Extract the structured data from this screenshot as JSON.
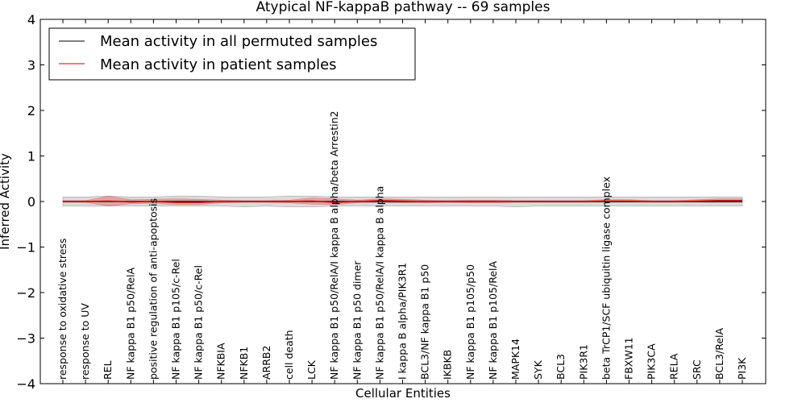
{
  "chart_data": {
    "type": "line",
    "title": "Atypical NF-kappaB pathway -- 69 samples",
    "xlabel": "Cellular Entities",
    "ylabel": "Inferred Activity",
    "ylim": [
      -4,
      4
    ],
    "yticks": [
      -4,
      -3,
      -2,
      -1,
      0,
      1,
      2,
      3,
      4
    ],
    "ytick_labels": [
      "−4",
      "−3",
      "−2",
      "−1",
      "0",
      "1",
      "2",
      "3",
      "4"
    ],
    "legend_position": "top-left",
    "categories": [
      "response to oxidative stress",
      "response to UV",
      "REL",
      "NF kappa B1 p50/RelA",
      "positive regulation of anti-apoptosis",
      "NF kappa B1 p105/c-Rel",
      "NF kappa B1 p50/c-Rel",
      "NFKBIA",
      "NFKB1",
      "ARRB2",
      "cell death",
      "LCK",
      "NF kappa B1 p50/RelA/I kappa B alpha/beta Arrestin2",
      "NF kappa B1 p50 dimer",
      "NF kappa B1 p50/RelA/I kappa B alpha",
      "I kappa B alpha/PIK3R1",
      "BCL3/NF kappa B1 p50",
      "IKBKB",
      "NF kappa B1 p105/p50",
      "NF kappa B1 p105/RelA",
      "MAPK14",
      "SYK",
      "BCL3",
      "PIK3R1",
      "beta TrCP1/SCF ubiquitin ligase complex",
      "FBXW11",
      "PIK3CA",
      "RELA",
      "SRC",
      "BCL3/RelA",
      "PI3K"
    ],
    "series": [
      {
        "name": "Mean activity in all permuted samples",
        "color": "#000000",
        "values": [
          0.0,
          0.0,
          0.0,
          0.0,
          0.0,
          0.0,
          0.0,
          0.0,
          0.0,
          0.0,
          0.0,
          0.0,
          0.0,
          0.0,
          0.0,
          0.0,
          0.0,
          0.0,
          0.0,
          0.0,
          0.0,
          0.0,
          0.0,
          0.0,
          0.0,
          0.0,
          0.0,
          0.0,
          0.0,
          0.0,
          0.0
        ],
        "band_upper": [
          0.1,
          0.1,
          0.12,
          0.1,
          0.1,
          0.12,
          0.12,
          0.1,
          0.1,
          0.1,
          0.12,
          0.12,
          0.1,
          0.1,
          0.1,
          0.1,
          0.1,
          0.1,
          0.1,
          0.1,
          0.1,
          0.1,
          0.1,
          0.1,
          0.1,
          0.1,
          0.1,
          0.1,
          0.1,
          0.1,
          0.1
        ],
        "band_lower": [
          -0.1,
          -0.1,
          -0.1,
          -0.1,
          -0.1,
          -0.1,
          -0.1,
          -0.1,
          -0.12,
          -0.1,
          -0.12,
          -0.12,
          -0.1,
          -0.1,
          -0.1,
          -0.1,
          -0.1,
          -0.1,
          -0.1,
          -0.1,
          -0.12,
          -0.1,
          -0.1,
          -0.1,
          -0.1,
          -0.1,
          -0.1,
          -0.1,
          -0.1,
          -0.1,
          -0.1
        ]
      },
      {
        "name": "Mean activity in patient samples",
        "color": "#cc0000",
        "values": [
          0.0,
          0.0,
          0.01,
          -0.01,
          0.0,
          -0.02,
          -0.02,
          0.0,
          0.0,
          0.0,
          0.0,
          0.01,
          -0.02,
          0.0,
          0.02,
          0.01,
          0.0,
          0.0,
          0.0,
          0.0,
          0.0,
          0.0,
          0.0,
          0.0,
          0.01,
          0.01,
          0.0,
          0.0,
          0.01,
          0.02,
          0.02
        ],
        "band_upper": [
          0.02,
          0.02,
          0.12,
          0.04,
          0.05,
          0.06,
          0.05,
          0.03,
          0.02,
          0.02,
          0.03,
          0.08,
          0.06,
          0.03,
          0.06,
          0.05,
          0.03,
          0.02,
          0.03,
          0.03,
          0.02,
          0.02,
          0.02,
          0.02,
          0.04,
          0.04,
          0.02,
          0.02,
          0.04,
          0.06,
          0.06
        ],
        "band_lower": [
          -0.02,
          -0.02,
          -0.1,
          -0.05,
          -0.04,
          -0.07,
          -0.07,
          -0.03,
          -0.02,
          -0.02,
          -0.03,
          -0.06,
          -0.07,
          -0.03,
          -0.02,
          -0.03,
          -0.03,
          -0.02,
          -0.03,
          -0.03,
          -0.02,
          -0.02,
          -0.02,
          -0.02,
          -0.02,
          -0.02,
          -0.02,
          -0.02,
          -0.02,
          -0.02,
          -0.02
        ]
      }
    ],
    "reference_line": {
      "value": 0,
      "style": "dotted"
    }
  }
}
